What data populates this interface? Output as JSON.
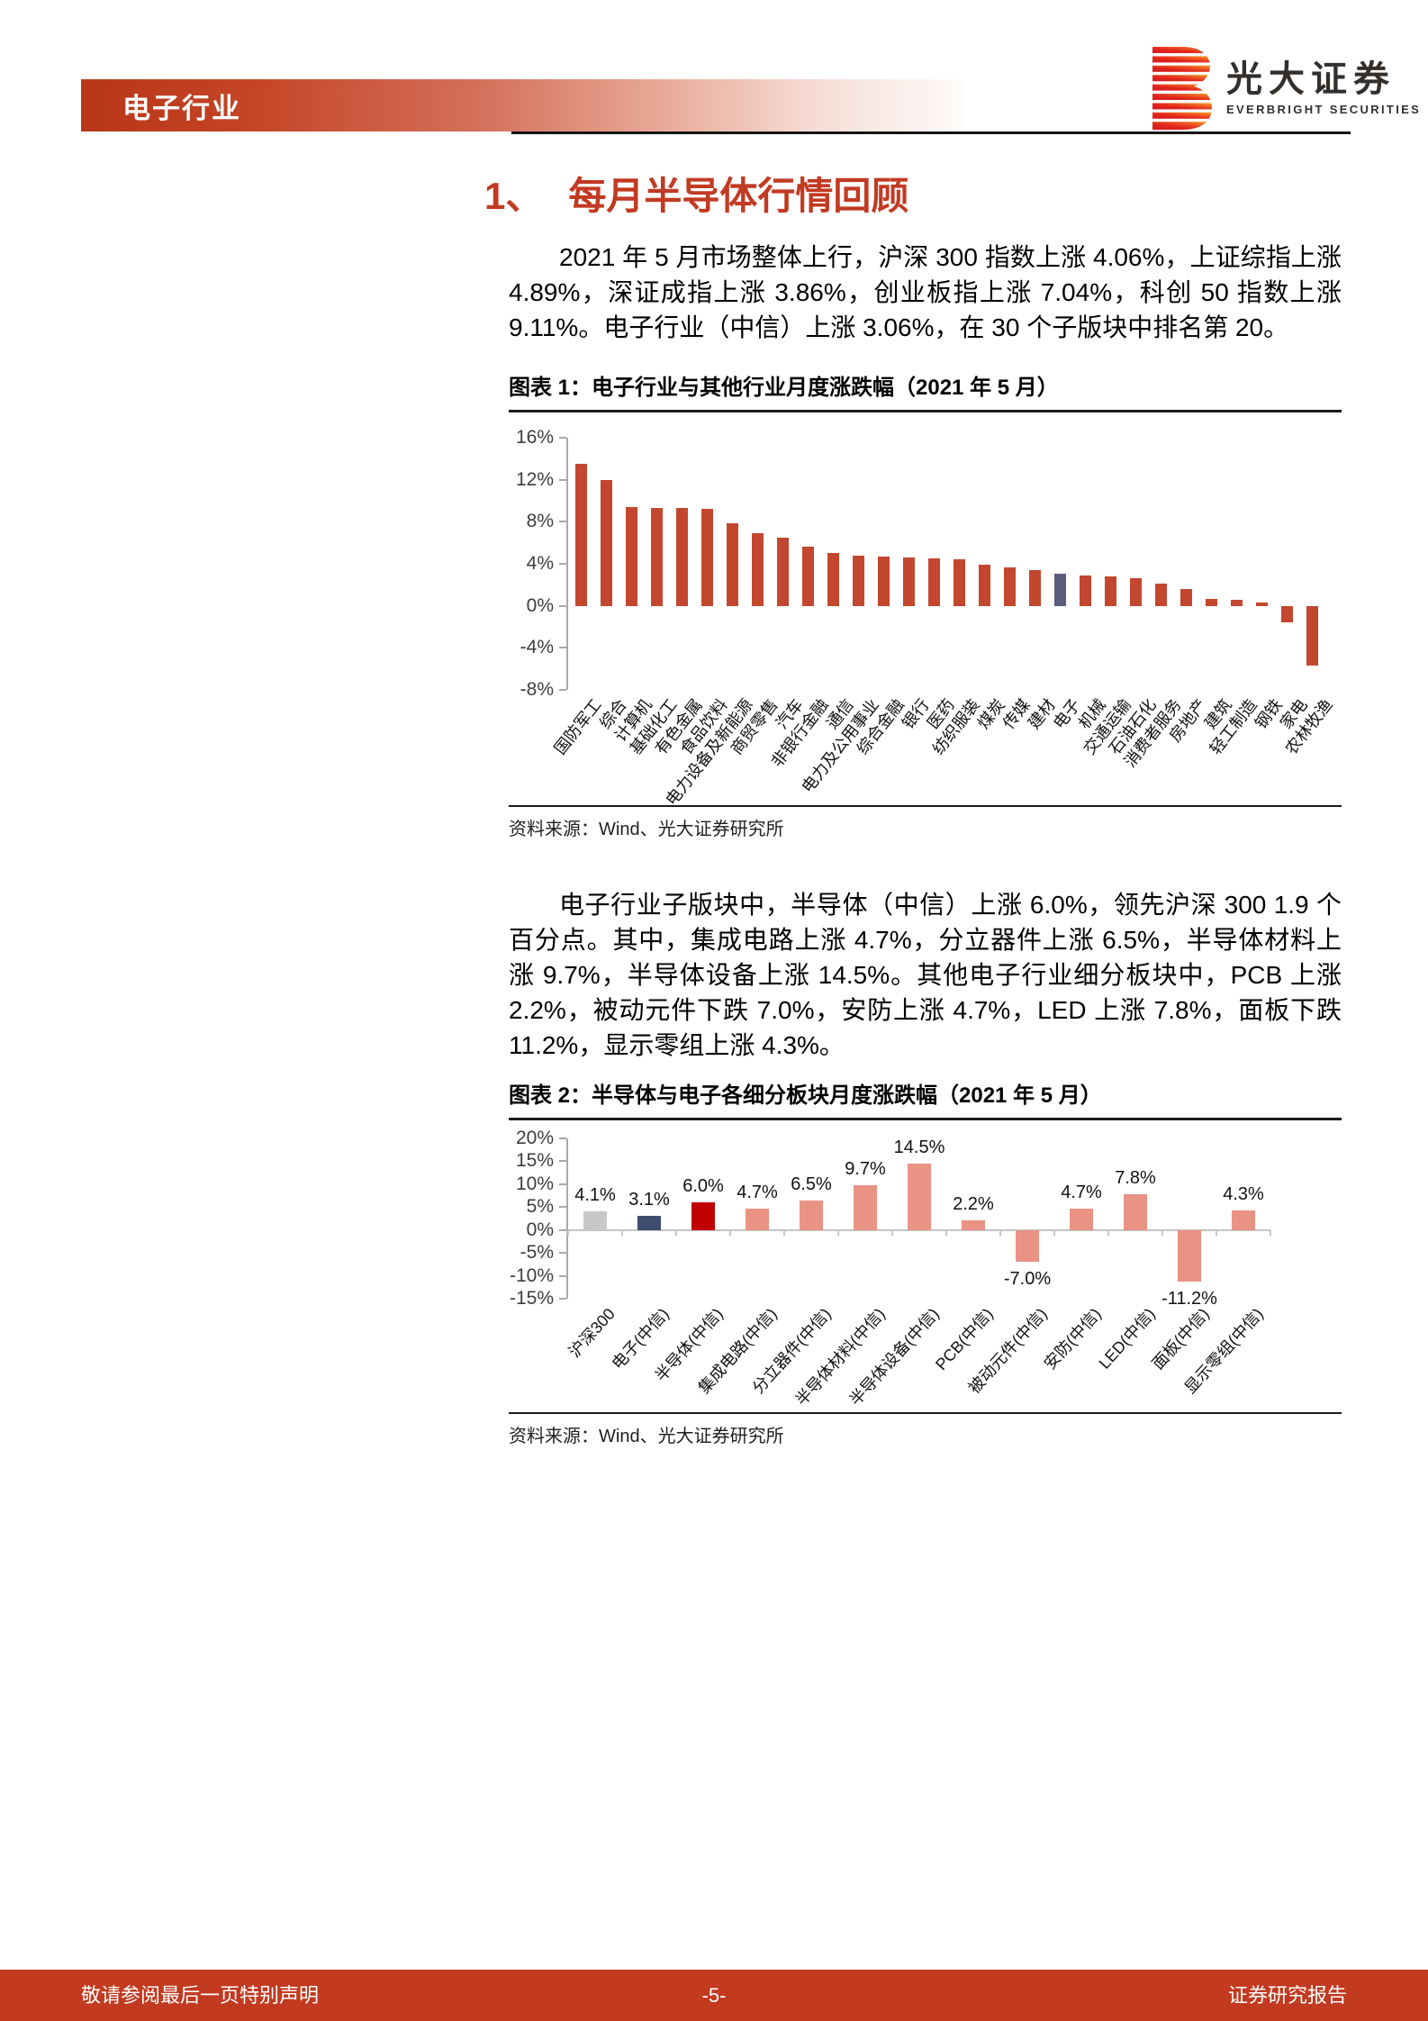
{
  "page": {
    "header": {
      "industry_tag": "电子行业",
      "brand_cn": "光大证券",
      "brand_en": "EVERBRIGHT SECURITIES"
    },
    "section": {
      "number": "1、",
      "title": "每月半导体行情回顾"
    },
    "paragraphs": {
      "p1": "2021 年 5 月市场整体上行，沪深 300 指数上涨 4.06%，上证综指上涨 4.89%，深证成指上涨 3.86%，创业板指上涨 7.04%，科创 50 指数上涨 9.11%。电子行业（中信）上涨 3.06%，在 30 个子版块中排名第 20。",
      "p2": "电子行业子版块中，半导体（中信）上涨 6.0%，领先沪深 300 1.9 个百分点。其中，集成电路上涨 4.7%，分立器件上涨 6.5%，半导体材料上涨 9.7%，半导体设备上涨 14.5%。其他电子行业细分板块中，PCB 上涨 2.2%，被动元件下跌 7.0%，安防上涨 4.7%，LED 上涨 7.8%，面板下跌 11.2%，显示零组上涨 4.3%。"
    },
    "figure1": {
      "caption": "图表 1：电子行业与其他行业月度涨跌幅（2021 年 5 月）",
      "source": "资料来源：Wind、光大证券研究所"
    },
    "figure2": {
      "caption": "图表 2：半导体与电子各细分板块月度涨跌幅（2021 年 5 月）",
      "source": "资料来源：Wind、光大证券研究所"
    },
    "footer": {
      "left": "敬请参阅最后一页特别声明",
      "page_number": "-5-",
      "right": "证券研究报告"
    }
  },
  "chart_data": [
    {
      "type": "bar",
      "title": "电子行业与其他行业月度涨跌幅（2021年5月）",
      "categories": [
        "国防军工",
        "综合",
        "计算机",
        "基础化工",
        "有色金属",
        "食品饮料",
        "电力设备及新能源",
        "商贸零售",
        "汽车",
        "非银行金融",
        "通信",
        "电力及公用事业",
        "综合金融",
        "银行",
        "医药",
        "纺织服装",
        "煤炭",
        "传媒",
        "建材",
        "电子",
        "机械",
        "交通运输",
        "石油石化",
        "消费者服务",
        "房地产",
        "建筑",
        "轻工制造",
        "钢铁",
        "家电",
        "农林牧渔"
      ],
      "values": [
        13.5,
        12.0,
        9.4,
        9.3,
        9.3,
        9.2,
        7.9,
        6.9,
        6.5,
        5.6,
        5.0,
        4.8,
        4.7,
        4.6,
        4.5,
        4.4,
        3.9,
        3.7,
        3.4,
        3.06,
        2.9,
        2.8,
        2.6,
        2.1,
        1.6,
        0.7,
        0.6,
        0.3,
        -1.6,
        -5.7
      ],
      "highlight_index": 19,
      "bar_color": "#c3472e",
      "highlight_color": "#5c5c7e",
      "xlabel": "",
      "ylabel": "",
      "ylim": [
        -8,
        16
      ],
      "yticks": [
        16,
        12,
        8,
        4,
        0,
        -4,
        -8
      ],
      "ytick_suffix": "%",
      "grid": false,
      "legend": "none"
    },
    {
      "type": "bar",
      "title": "半导体与电子各细分板块月度涨跌幅（2021年5月）",
      "categories": [
        "沪深300",
        "电子(中信)",
        "半导体(中信)",
        "集成电路(中信)",
        "分立器件(中信)",
        "半导体材料(中信)",
        "半导体设备(中信)",
        "PCB(中信)",
        "被动元件(中信)",
        "安防(中信)",
        "LED(中信)",
        "面板(中信)",
        "显示零组(中信)"
      ],
      "values": [
        4.1,
        3.1,
        6.0,
        4.7,
        6.5,
        9.7,
        14.5,
        2.2,
        -7.0,
        4.7,
        7.8,
        -11.2,
        4.3
      ],
      "data_labels": [
        "4.1%",
        "3.1%",
        "6.0%",
        "4.7%",
        "6.5%",
        "9.7%",
        "14.5%",
        "2.2%",
        "-7.0%",
        "4.7%",
        "7.8%",
        "-11.2%",
        "4.3%"
      ],
      "bar_colors": [
        "#c8c8c8",
        "#3f4d6e",
        "#c00000",
        "#e99384",
        "#e99384",
        "#e99384",
        "#e99384",
        "#e99384",
        "#e99384",
        "#e99384",
        "#e99384",
        "#e99384",
        "#e99384"
      ],
      "xlabel": "",
      "ylabel": "",
      "ylim": [
        -15,
        20
      ],
      "yticks": [
        20,
        15,
        10,
        5,
        0,
        -5,
        -10,
        -15
      ],
      "ytick_suffix": "%",
      "zero_line": true,
      "grid": false,
      "legend": "none"
    }
  ],
  "colors": {
    "accent_red": "#c23a20",
    "heading_red": "#c23a22",
    "chart1_bar": "#c3472e",
    "chart1_highlight": "#5c5c7e",
    "chart2_gray": "#c8c8c8",
    "chart2_navy": "#3f4d6e",
    "chart2_red": "#c00000",
    "chart2_salmon": "#e99384"
  }
}
